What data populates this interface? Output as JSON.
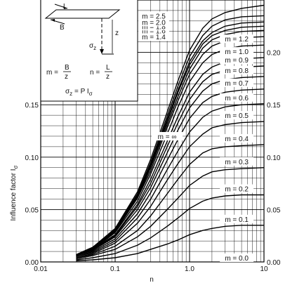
{
  "chart_data": {
    "type": "line",
    "xscale": "log",
    "xlim": [
      0.01,
      10
    ],
    "ylim": [
      0,
      0.25
    ],
    "xlabel": "n",
    "ylabel": "Influence factor I",
    "ylabel_sub": "σ",
    "xticks": [
      "0.01",
      "0.1",
      "1.0",
      "10"
    ],
    "yticks_left": [
      "0.00",
      "0.05",
      "0.10",
      "0.15"
    ],
    "yticks_right": [
      "0.00",
      "0.05",
      "0.10",
      "0.15",
      "0.20"
    ],
    "grid": true,
    "series": [
      {
        "name": "m = 0.1",
        "x": [
          0.03,
          0.05,
          0.1,
          0.2,
          0.3,
          0.5,
          0.7,
          1,
          1.5,
          2,
          3,
          5,
          10
        ],
        "y": [
          0.001,
          0.002,
          0.004,
          0.008,
          0.012,
          0.017,
          0.021,
          0.026,
          0.03,
          0.032,
          0.034,
          0.035,
          0.035
        ]
      },
      {
        "name": "m = 0.2",
        "x": [
          0.03,
          0.05,
          0.1,
          0.2,
          0.3,
          0.5,
          0.7,
          1,
          1.5,
          2,
          3,
          5,
          10
        ],
        "y": [
          0.002,
          0.004,
          0.008,
          0.016,
          0.023,
          0.034,
          0.042,
          0.051,
          0.058,
          0.061,
          0.063,
          0.064,
          0.064
        ]
      },
      {
        "name": "m = 0.3",
        "x": [
          0.03,
          0.05,
          0.1,
          0.2,
          0.3,
          0.5,
          0.7,
          1,
          1.5,
          2,
          3,
          5,
          10
        ],
        "y": [
          0.003,
          0.006,
          0.012,
          0.024,
          0.034,
          0.05,
          0.061,
          0.073,
          0.082,
          0.086,
          0.088,
          0.089,
          0.09
        ]
      },
      {
        "name": "m = 0.4",
        "x": [
          0.03,
          0.05,
          0.1,
          0.2,
          0.3,
          0.5,
          0.7,
          1,
          1.5,
          2,
          3,
          5,
          10
        ],
        "y": [
          0.004,
          0.007,
          0.015,
          0.03,
          0.044,
          0.065,
          0.079,
          0.093,
          0.104,
          0.108,
          0.11,
          0.111,
          0.112
        ]
      },
      {
        "name": "m = 0.5",
        "x": [
          0.03,
          0.05,
          0.1,
          0.2,
          0.3,
          0.5,
          0.7,
          1,
          1.5,
          2,
          3,
          5,
          10
        ],
        "y": [
          0.004,
          0.008,
          0.018,
          0.037,
          0.053,
          0.078,
          0.094,
          0.11,
          0.122,
          0.128,
          0.131,
          0.133,
          0.134
        ]
      },
      {
        "name": "m = 0.6",
        "x": [
          0.03,
          0.05,
          0.1,
          0.2,
          0.3,
          0.5,
          0.7,
          1,
          1.5,
          2,
          3,
          5,
          10
        ],
        "y": [
          0.005,
          0.009,
          0.02,
          0.042,
          0.06,
          0.088,
          0.106,
          0.124,
          0.138,
          0.144,
          0.148,
          0.15,
          0.151
        ]
      },
      {
        "name": "m = 0.7",
        "x": [
          0.03,
          0.05,
          0.1,
          0.2,
          0.3,
          0.5,
          0.7,
          1,
          1.5,
          2,
          3,
          5,
          10
        ],
        "y": [
          0.005,
          0.01,
          0.022,
          0.046,
          0.066,
          0.097,
          0.117,
          0.137,
          0.152,
          0.158,
          0.162,
          0.164,
          0.165
        ]
      },
      {
        "name": "m = 0.8",
        "x": [
          0.03,
          0.05,
          0.1,
          0.2,
          0.3,
          0.5,
          0.7,
          1,
          1.5,
          2,
          3,
          5,
          10
        ],
        "y": [
          0.006,
          0.011,
          0.024,
          0.05,
          0.071,
          0.104,
          0.126,
          0.147,
          0.163,
          0.17,
          0.174,
          0.176,
          0.177
        ]
      },
      {
        "name": "m = 0.9",
        "x": [
          0.03,
          0.05,
          0.1,
          0.2,
          0.3,
          0.5,
          0.7,
          1,
          1.5,
          2,
          3,
          5,
          10
        ],
        "y": [
          0.006,
          0.011,
          0.025,
          0.053,
          0.075,
          0.11,
          0.133,
          0.155,
          0.172,
          0.179,
          0.183,
          0.186,
          0.187
        ]
      },
      {
        "name": "m = 1.0",
        "x": [
          0.03,
          0.05,
          0.1,
          0.2,
          0.3,
          0.5,
          0.7,
          1,
          1.5,
          2,
          3,
          5,
          10
        ],
        "y": [
          0.006,
          0.012,
          0.026,
          0.055,
          0.079,
          0.115,
          0.139,
          0.162,
          0.179,
          0.186,
          0.191,
          0.194,
          0.195
        ]
      },
      {
        "name": "m = 1.2",
        "x": [
          0.03,
          0.05,
          0.1,
          0.2,
          0.3,
          0.5,
          0.7,
          1,
          1.5,
          2,
          3,
          5,
          10
        ],
        "y": [
          0.006,
          0.012,
          0.028,
          0.058,
          0.084,
          0.122,
          0.148,
          0.172,
          0.19,
          0.198,
          0.203,
          0.206,
          0.207
        ]
      },
      {
        "name": "m = 1.4",
        "x": [
          0.03,
          0.05,
          0.1,
          0.2,
          0.3,
          0.5,
          0.7,
          1,
          1.5,
          2,
          3,
          5,
          10
        ],
        "y": [
          0.006,
          0.013,
          0.029,
          0.061,
          0.087,
          0.128,
          0.154,
          0.179,
          0.198,
          0.206,
          0.211,
          0.214,
          0.215
        ]
      },
      {
        "name": "m = 1.6",
        "x": [
          0.03,
          0.05,
          0.1,
          0.2,
          0.3,
          0.5,
          0.7,
          1,
          1.5,
          2,
          3,
          5,
          10
        ],
        "y": [
          0.007,
          0.013,
          0.03,
          0.062,
          0.09,
          0.131,
          0.158,
          0.184,
          0.204,
          0.212,
          0.217,
          0.22,
          0.221
        ]
      },
      {
        "name": "m = 1.8",
        "x": [
          0.03,
          0.05,
          0.1,
          0.2,
          0.3,
          0.5,
          0.7,
          1,
          1.5,
          2,
          3,
          5,
          10
        ],
        "y": [
          0.007,
          0.013,
          0.03,
          0.063,
          0.091,
          0.134,
          0.162,
          0.188,
          0.208,
          0.216,
          0.221,
          0.224,
          0.225
        ]
      },
      {
        "name": "m = 2.0",
        "x": [
          0.03,
          0.05,
          0.1,
          0.2,
          0.3,
          0.5,
          0.7,
          1,
          1.5,
          2,
          3,
          5,
          10
        ],
        "y": [
          0.007,
          0.013,
          0.031,
          0.064,
          0.093,
          0.136,
          0.164,
          0.191,
          0.211,
          0.219,
          0.225,
          0.228,
          0.229
        ]
      },
      {
        "name": "m = 2.5",
        "x": [
          0.03,
          0.05,
          0.1,
          0.2,
          0.3,
          0.5,
          0.7,
          1,
          1.5,
          2,
          3,
          5,
          10
        ],
        "y": [
          0.007,
          0.014,
          0.031,
          0.065,
          0.095,
          0.139,
          0.168,
          0.196,
          0.216,
          0.225,
          0.231,
          0.234,
          0.235
        ]
      },
      {
        "name": "m = ∞",
        "x": [
          0.03,
          0.05,
          0.1,
          0.2,
          0.3,
          0.5,
          0.7,
          1,
          1.5,
          2,
          3,
          5,
          10
        ],
        "y": [
          0.007,
          0.014,
          0.032,
          0.067,
          0.098,
          0.143,
          0.173,
          0.202,
          0.223,
          0.232,
          0.238,
          0.242,
          0.245
        ]
      }
    ],
    "curve_labels": [
      "m = 0.0",
      "m = 0.1",
      "m = 0.2",
      "m = 0.3",
      "m = 0.4",
      "m = 0.5",
      "m = 0.6",
      "m = 0.7",
      "m = 0.8",
      "m = 0.9",
      "m = 1.0",
      "m = 1.2",
      "m = 1.4",
      "m = 1.6",
      "m = 1.8",
      "m = 2.0",
      "m = 2.5",
      "m = ∞"
    ],
    "annotations": {
      "inset": {
        "L": "L",
        "B": "B",
        "z": "z",
        "sigma_z": "σ",
        "sigma_z_sub": "z",
        "m_eq": "m =",
        "m_num": "B",
        "m_den": "z",
        "n_eq": "n =",
        "n_num": "L",
        "n_den": "z",
        "formula_left": "σ",
        "formula_left_sub": "z",
        "formula_mid": " = P I",
        "formula_right_sub": "σ"
      }
    }
  }
}
